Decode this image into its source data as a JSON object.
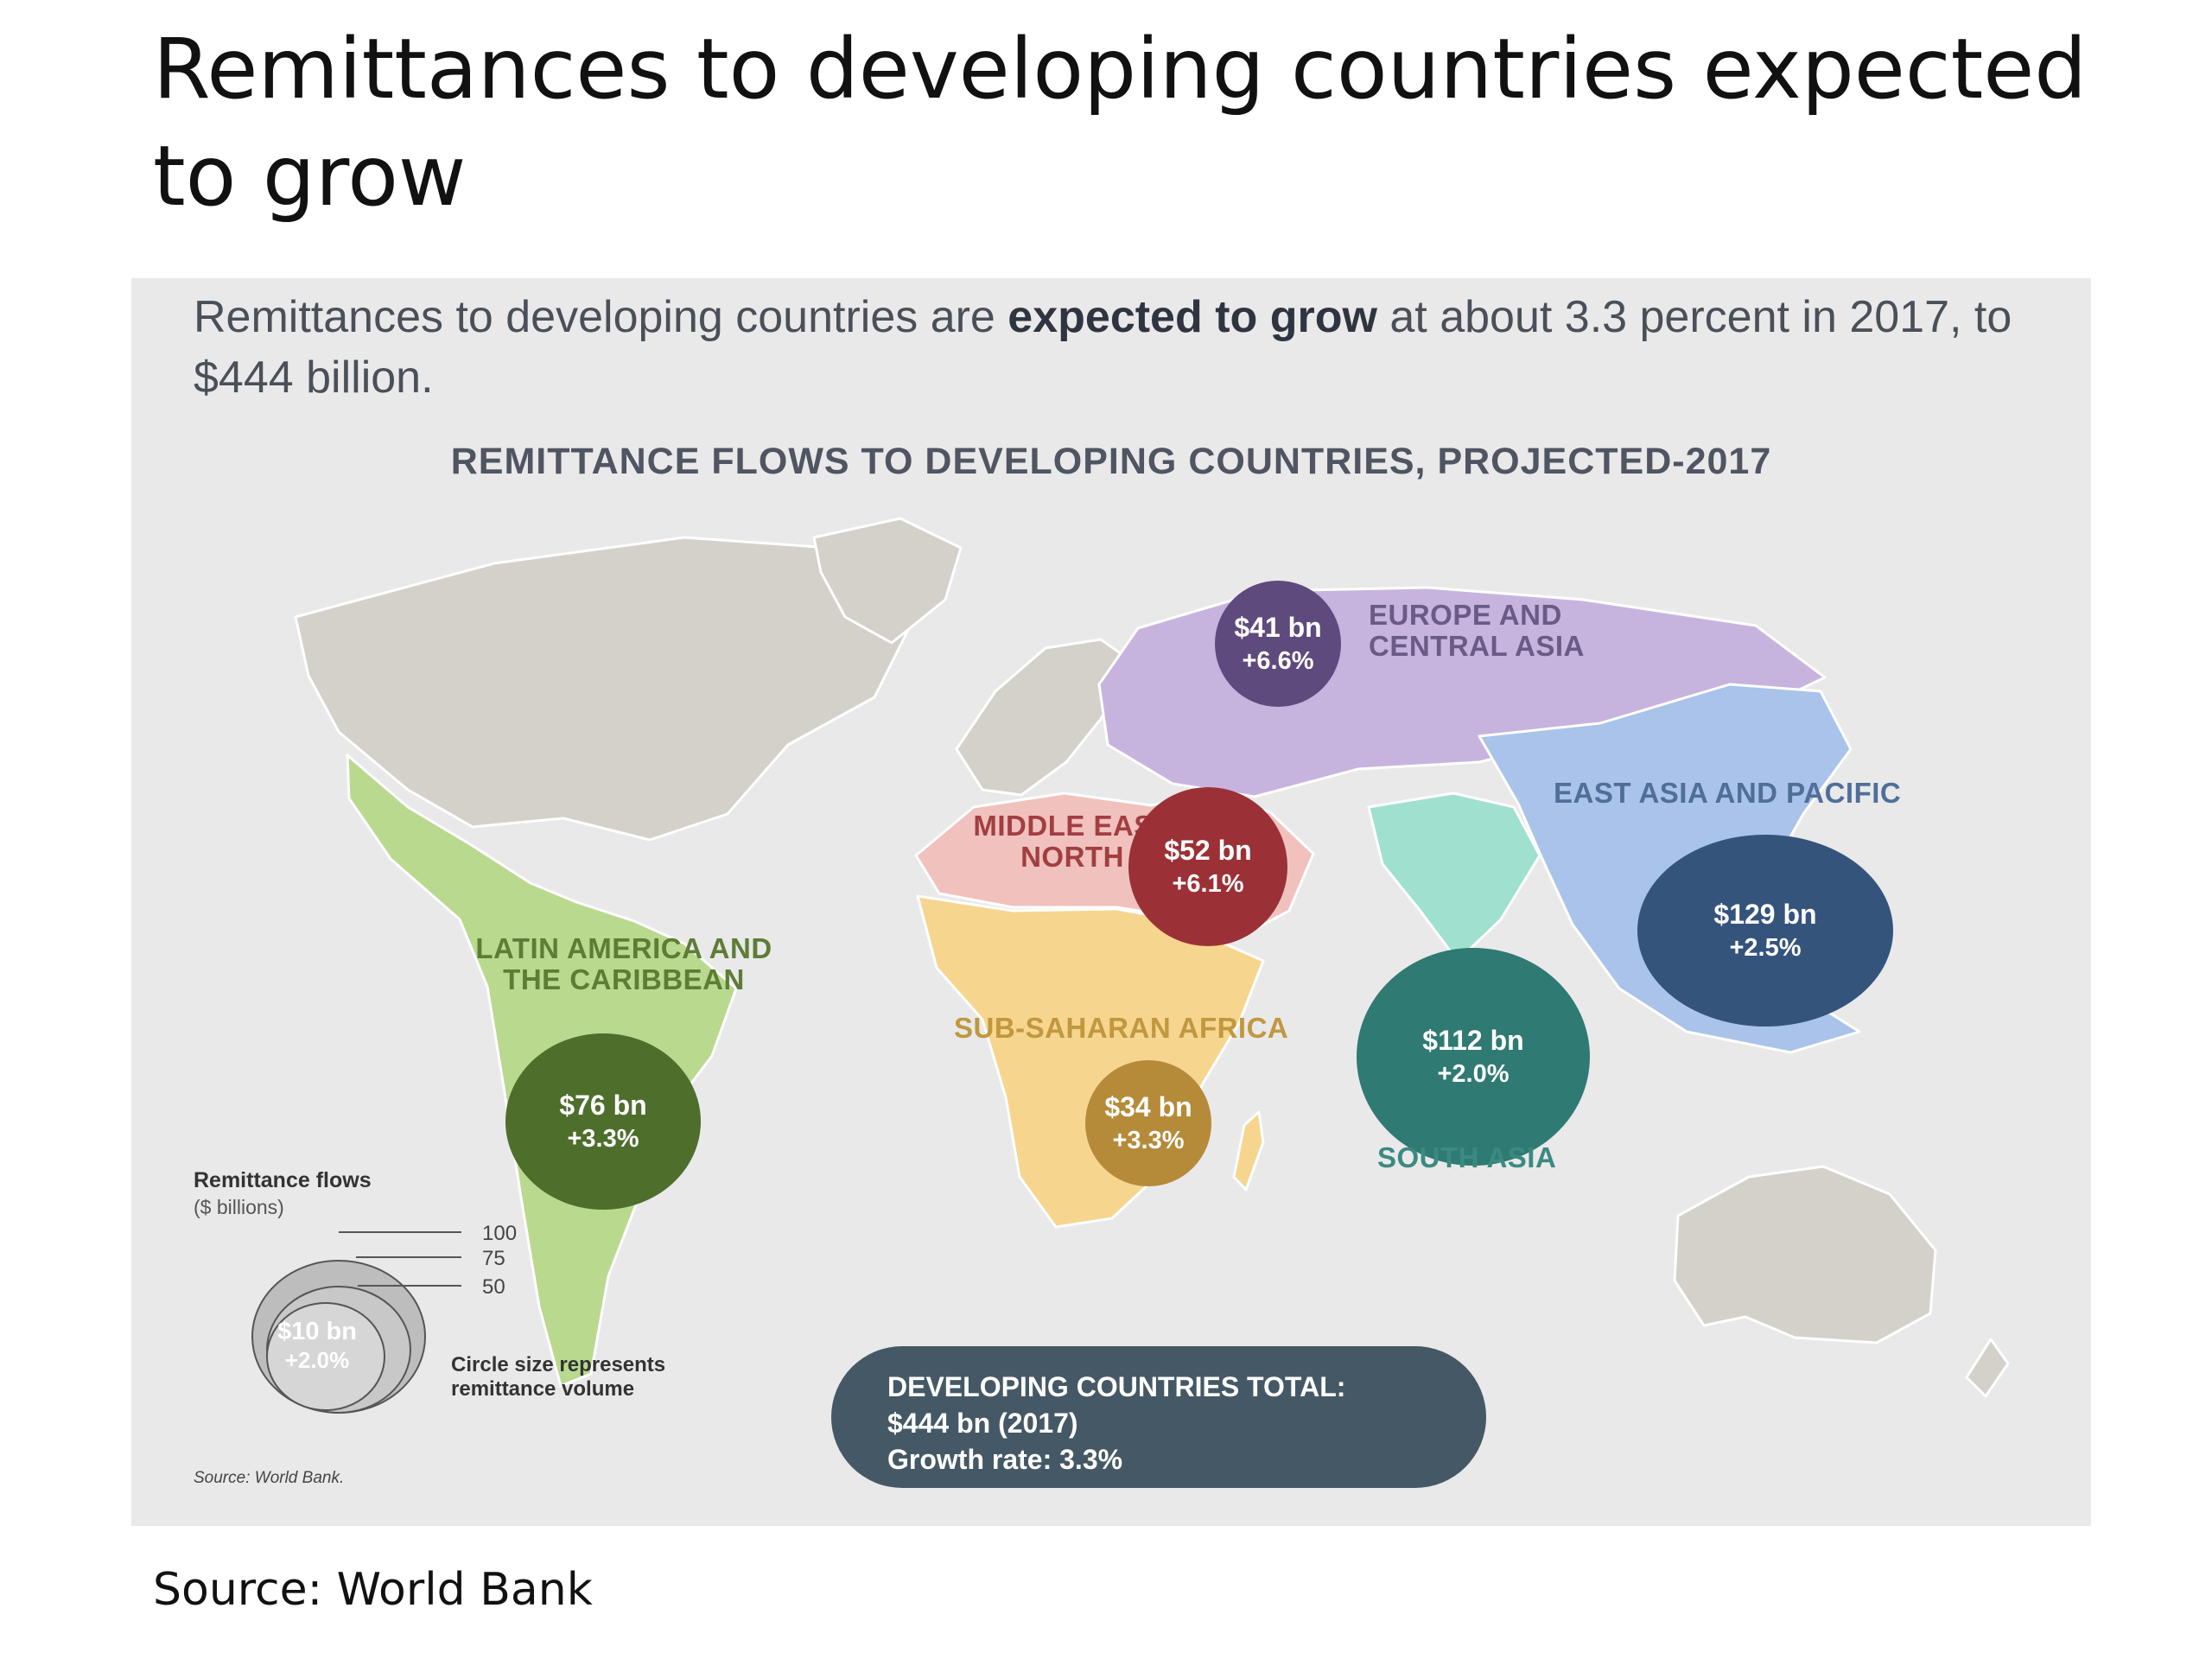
{
  "slide": {
    "title": "Remittances to developing countries expected to grow",
    "source": "Source: World Bank"
  },
  "figure": {
    "subhead_before": "Remittances to developing countries are ",
    "subhead_bold": "expected to grow",
    "subhead_after": " at about 3.3 percent in 2017, to $444 billion.",
    "map_title": "REMITTANCE FLOWS TO DEVELOPING COUNTRIES, PROJECTED-2017",
    "source_note": "Source: World Bank."
  },
  "regions": [
    {
      "name_lines": [
        "EUROPE AND",
        "CENTRAL ASIA"
      ],
      "amount": "$41 bn",
      "growth": "+6.6%",
      "value_bn": 41,
      "growth_pct": 6.6,
      "color": "#5e4a7c",
      "area_color": "#c7b4de",
      "label_color": "#6a5a86"
    },
    {
      "name_lines": [
        "MIDDLE EAST AND",
        "NORTH AFRICA"
      ],
      "amount": "$52 bn",
      "growth": "+6.1%",
      "value_bn": 52,
      "growth_pct": 6.1,
      "color": "#9b3137",
      "area_color": "#f1c1bd",
      "label_color": "#a23e42"
    },
    {
      "name_lines": [
        "EAST ASIA AND PACIFIC"
      ],
      "amount": "$129 bn",
      "growth": "+2.5%",
      "value_bn": 129,
      "growth_pct": 2.5,
      "color": "#34547c",
      "area_color": "#a9c3ea",
      "label_color": "#4f6f98"
    },
    {
      "name_lines": [
        "LATIN AMERICA AND",
        "THE CARIBBEAN"
      ],
      "amount": "$76 bn",
      "growth": "+3.3%",
      "value_bn": 76,
      "growth_pct": 3.3,
      "color": "#4e6e2c",
      "area_color": "#b9d98f",
      "label_color": "#5d7d37"
    },
    {
      "name_lines": [
        "SUB-SAHARAN AFRICA"
      ],
      "amount": "$34 bn",
      "growth": "+3.3%",
      "value_bn": 34,
      "growth_pct": 3.3,
      "color": "#b58a39",
      "area_color": "#f6d58e",
      "label_color": "#c1973f"
    },
    {
      "name_lines": [
        "SOUTH ASIA"
      ],
      "amount": "$112 bn",
      "growth": "+2.0%",
      "value_bn": 112,
      "growth_pct": 2.0,
      "color": "#2f7a72",
      "area_color": "#9fe0cf",
      "label_color": "#3b8a80"
    }
  ],
  "legend": {
    "title": "Remittance flows",
    "subtitle": "($ billions)",
    "scale": [
      "100",
      "75",
      "50"
    ],
    "sample_amount": "$10 bn",
    "sample_growth": "+2.0%",
    "note": "Circle size represents remittance volume"
  },
  "total": {
    "line1": "DEVELOPING COUNTRIES TOTAL:",
    "line2": "$444 bn (2017)",
    "line3": "Growth rate: 3.3%"
  },
  "colors": {
    "background": "#e9e9ea",
    "land": "#d3d1ca",
    "total_pill": "#455865"
  }
}
